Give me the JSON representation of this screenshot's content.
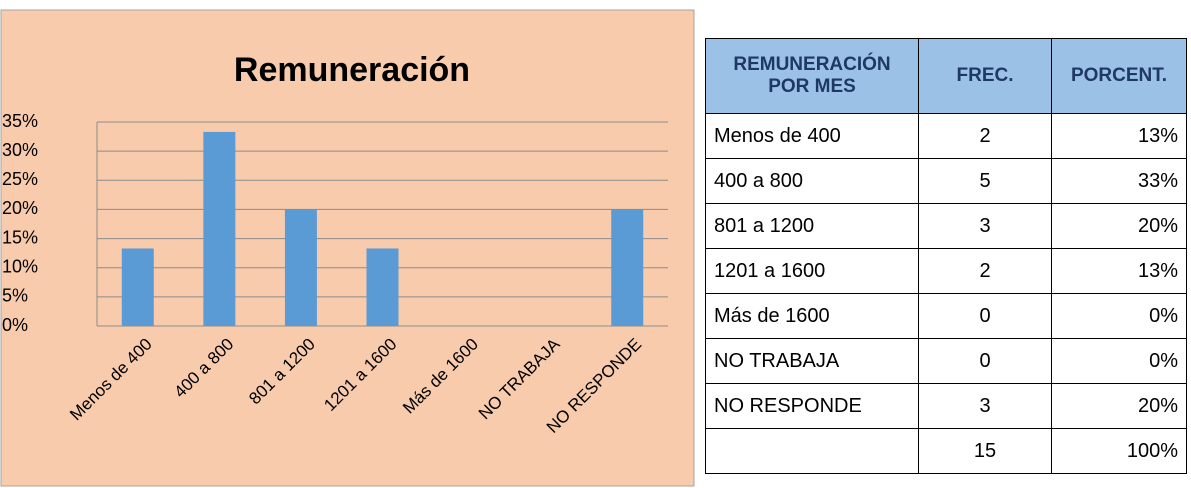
{
  "chart_data": {
    "type": "bar",
    "title": "Remuneración",
    "categories": [
      "Menos de 400",
      "400 a 800",
      "801 a 1200",
      "1201 a 1600",
      "Más de 1600",
      "NO TRABAJA",
      "NO RESPONDE"
    ],
    "values": [
      13.3,
      33.3,
      20,
      13.3,
      0,
      0,
      20
    ],
    "color": "#5b9bd5",
    "ylim": [
      0,
      35
    ],
    "yticks": [
      {
        "value": 0,
        "label": "0%"
      },
      {
        "value": 5,
        "label": "5%"
      },
      {
        "value": 10,
        "label": "10%"
      },
      {
        "value": 15,
        "label": "15%"
      },
      {
        "value": 20,
        "label": "20%"
      },
      {
        "value": 25,
        "label": "25%"
      },
      {
        "value": 30,
        "label": "30%"
      },
      {
        "value": 35,
        "label": "35%"
      }
    ],
    "grid": true
  },
  "table": {
    "header": [
      "REMUNERACIÓN POR MES",
      "FREC.",
      "PORCENT."
    ],
    "rows": [
      [
        "Menos de 400",
        "2",
        "13%"
      ],
      [
        "400 a 800",
        "5",
        "33%"
      ],
      [
        "801 a 1200",
        "3",
        "20%"
      ],
      [
        "1201 a 1600",
        "2",
        "13%"
      ],
      [
        "Más de 1600",
        "0",
        "0%"
      ],
      [
        "NO TRABAJA",
        "0",
        "0%"
      ],
      [
        "NO RESPONDE",
        "3",
        "20%"
      ]
    ],
    "total": {
      "frec": "15",
      "porcent": "100%"
    }
  }
}
